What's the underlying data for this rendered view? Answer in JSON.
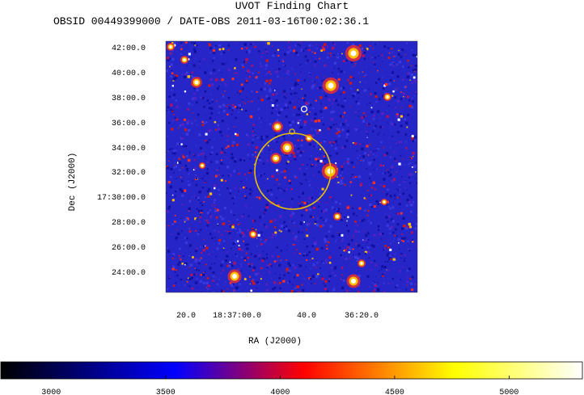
{
  "header": {
    "title": "UVOT Finding Chart",
    "subtitle": "OBSID 00449399000 / DATE-OBS 2011-03-16T00:02:36.1"
  },
  "chart_data": [
    {
      "type": "heatmap",
      "title": "UVOT Finding Chart",
      "subtitle": "OBSID 00449399000 / DATE-OBS 2011-03-16T00:02:36.1",
      "xlabel": "RA (J2000)",
      "ylabel": "Dec (J2000)",
      "x_ticks": [
        "20.0",
        "18:37:00.0",
        "40.0",
        "36:20.0"
      ],
      "y_ticks": [
        "42:00.0",
        "40:00.0",
        "38:00.0",
        "36:00.0",
        "34:00.0",
        "32:00.0",
        "17:30:00.0",
        "28:00.0",
        "26:00.0",
        "24:00.0"
      ],
      "grid": false,
      "overlays": [
        "yellow circle (target error region)",
        "small yellow circle",
        "small white circle"
      ],
      "colors": {
        "background": "#2020d0",
        "overlay_circle": "#e8c000",
        "marker_circle": "#ffffff"
      }
    },
    {
      "type": "heatmap",
      "description_role": "colorbar",
      "x_ticks": [
        3000,
        3500,
        4000,
        4500,
        5000
      ],
      "xlim": [
        2780,
        5320
      ],
      "colormap_stops": [
        "#000000",
        "#0000ff",
        "#ff0000",
        "#ffff00",
        "#ffffff"
      ]
    }
  ]
}
